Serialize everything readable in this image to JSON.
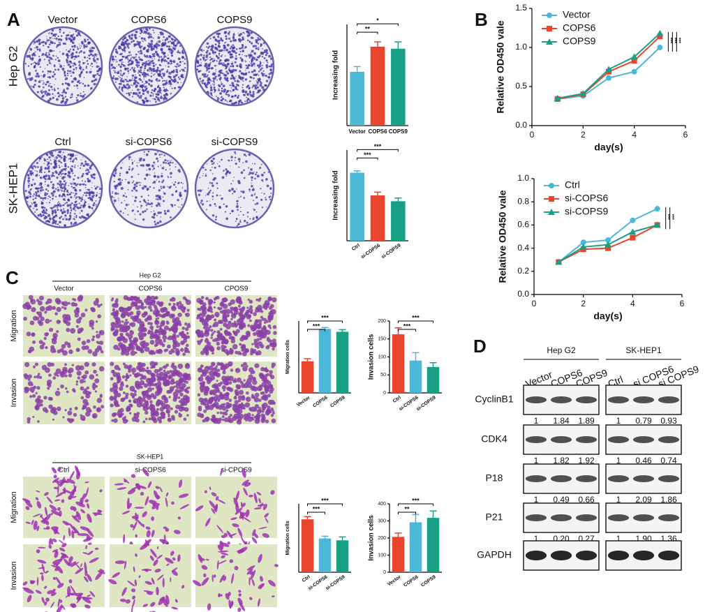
{
  "panel_labels": [
    "A",
    "B",
    "C",
    "D"
  ],
  "colony": {
    "rows": [
      {
        "label": "Hep G2",
        "columns": [
          "Vector",
          "COPS6",
          "COPS9"
        ]
      },
      {
        "label": "SK-HEP1",
        "columns": [
          "Ctrl",
          "si-COPS6",
          "si-COPS9"
        ]
      }
    ]
  },
  "transwell": [
    {
      "title": "Hep G2",
      "columns": [
        "Vector",
        "COPS6",
        "CPOS9"
      ],
      "rows": [
        "Migration",
        "Invasion"
      ]
    },
    {
      "title": "SK-HEP1",
      "columns": [
        "Ctrl",
        "si-COPS6",
        "si-CPOS9"
      ],
      "rows": [
        "Migration",
        "Invasion"
      ]
    }
  ],
  "blot": {
    "groups": [
      {
        "name": "Hep G2",
        "lanes": [
          "Vector",
          "COPS6",
          "COPS9"
        ]
      },
      {
        "name": "SK-HEP1",
        "lanes": [
          "Ctrl",
          "si COPS6",
          "si COPS9"
        ]
      }
    ],
    "proteins": [
      {
        "name": "CyclinB1",
        "quant": [
          "1",
          "1.84",
          "1.89",
          "1",
          "0.79",
          "0.93"
        ]
      },
      {
        "name": "CDK4",
        "quant": [
          "1",
          "1.82",
          "1.92",
          "1",
          "0.46",
          "0.74"
        ]
      },
      {
        "name": "P18",
        "quant": [
          "1",
          "0.49",
          "0.66",
          "1",
          "2.09",
          "1.86"
        ]
      },
      {
        "name": "P21",
        "quant": [
          "1",
          "0.20",
          "0.27",
          "1",
          "1.90",
          "1.36"
        ]
      },
      {
        "name": "GAPDH"
      }
    ]
  },
  "chart_data": [
    {
      "type": "bar",
      "ylabel": "Increasing fold",
      "categories": [
        "Vector",
        "COPS6",
        "COPS9"
      ],
      "values": [
        133,
        195,
        190
      ],
      "errors": [
        13,
        12,
        17
      ],
      "colors": [
        "#4ab8d8",
        "#e8452c",
        "#17a085"
      ],
      "ylim": [
        0,
        250
      ],
      "annotations": [
        "**",
        "*"
      ]
    },
    {
      "type": "bar",
      "ylabel": "Increasing fold",
      "categories": [
        "Ctrl",
        "si-COPS6",
        "si-COPS9"
      ],
      "values": [
        105,
        70,
        61
      ],
      "errors": [
        3,
        5,
        5
      ],
      "colors": [
        "#4ab8d8",
        "#e8452c",
        "#17a085"
      ],
      "ylim": [
        0,
        140
      ],
      "annotations": [
        "***",
        "***"
      ]
    },
    {
      "type": "line",
      "ylabel": "Relative OD450 vale",
      "xlabel": "day(s)",
      "x": [
        1,
        2,
        3,
        4,
        5
      ],
      "series": [
        {
          "name": "Vector",
          "color": "#4ab8d8",
          "values": [
            0.34,
            0.38,
            0.61,
            0.69,
            1.0
          ]
        },
        {
          "name": "COPS6",
          "color": "#e8452c",
          "values": [
            0.34,
            0.4,
            0.69,
            0.83,
            1.14
          ]
        },
        {
          "name": "COPS9",
          "color": "#17a085",
          "values": [
            0.35,
            0.41,
            0.72,
            0.88,
            1.18
          ]
        }
      ],
      "xlim": [
        0,
        6
      ],
      "xticks": [
        0,
        2,
        4,
        6
      ],
      "ylim": [
        0,
        1.5
      ],
      "yticks": [
        {
          "value": 0,
          "label": "0.0"
        },
        0.5,
        {
          "value": 1,
          "label": "1.0"
        },
        1.5
      ],
      "annotations": [
        "***",
        "***",
        "***"
      ]
    },
    {
      "type": "line",
      "ylabel": "Relative OD450 vale",
      "xlabel": "day(s)",
      "x": [
        1,
        2,
        3,
        4,
        5
      ],
      "series": [
        {
          "name": "Ctrl",
          "color": "#4ab8d8",
          "values": [
            0.28,
            0.45,
            0.47,
            0.64,
            0.74
          ]
        },
        {
          "name": "si-COPS6",
          "color": "#e8452c",
          "values": [
            0.28,
            0.39,
            0.4,
            0.49,
            0.6
          ]
        },
        {
          "name": "si-COPS9",
          "color": "#17a085",
          "values": [
            0.28,
            0.41,
            0.43,
            0.54,
            0.6
          ]
        }
      ],
      "xlim": [
        0,
        6
      ],
      "xticks": [
        0,
        2,
        4,
        6
      ],
      "ylim": [
        0,
        1
      ],
      "yticks": [
        {
          "value": 0,
          "label": "0.0"
        },
        0.2,
        0.4,
        0.6,
        0.8,
        {
          "value": 1,
          "label": "1.0"
        }
      ],
      "annotations": [
        "***",
        "***"
      ]
    },
    {
      "type": "bar",
      "ylabel": "Migration cells",
      "categories": [
        "Vector",
        "COPS6",
        "COPS9"
      ],
      "values": [
        220,
        445,
        425
      ],
      "errors": [
        18,
        10,
        15
      ],
      "colors": [
        "#e8452c",
        "#4ab8d8",
        "#17a085"
      ],
      "ylim": [
        0,
        500
      ],
      "annotations": [
        "***",
        "***"
      ]
    },
    {
      "type": "bar",
      "ylabel": "Invasion cells",
      "categories": [
        "Ctrl",
        "si-COPS6",
        "si-COPS9"
      ],
      "values": [
        163,
        90,
        72
      ],
      "errors": [
        18,
        22,
        12
      ],
      "colors": [
        "#e8452c",
        "#4ab8d8",
        "#17a085"
      ],
      "ylim": [
        0,
        200
      ],
      "yticks": [
        0,
        50,
        100,
        150,
        200
      ],
      "annotations": [
        "***",
        "***"
      ]
    },
    {
      "type": "bar",
      "ylabel": "Migration cells",
      "categories": [
        "Ctrl",
        "si-COPS6",
        "si-COPS9"
      ],
      "values": [
        232,
        148,
        140
      ],
      "errors": [
        12,
        10,
        15
      ],
      "colors": [
        "#e8452c",
        "#4ab8d8",
        "#17a085"
      ],
      "ylim": [
        0,
        300
      ],
      "annotations": [
        "***",
        "***"
      ]
    },
    {
      "type": "bar",
      "ylabel": "Invasion cells",
      "categories": [
        "Vector",
        "COPS6",
        "COPS9"
      ],
      "values": [
        207,
        292,
        318
      ],
      "errors": [
        22,
        45,
        40
      ],
      "colors": [
        "#e8452c",
        "#4ab8d8",
        "#17a085"
      ],
      "ylim": [
        0,
        400
      ],
      "yticks": [
        0,
        100,
        200,
        300,
        400
      ],
      "annotations": [
        "**",
        "***"
      ]
    }
  ]
}
